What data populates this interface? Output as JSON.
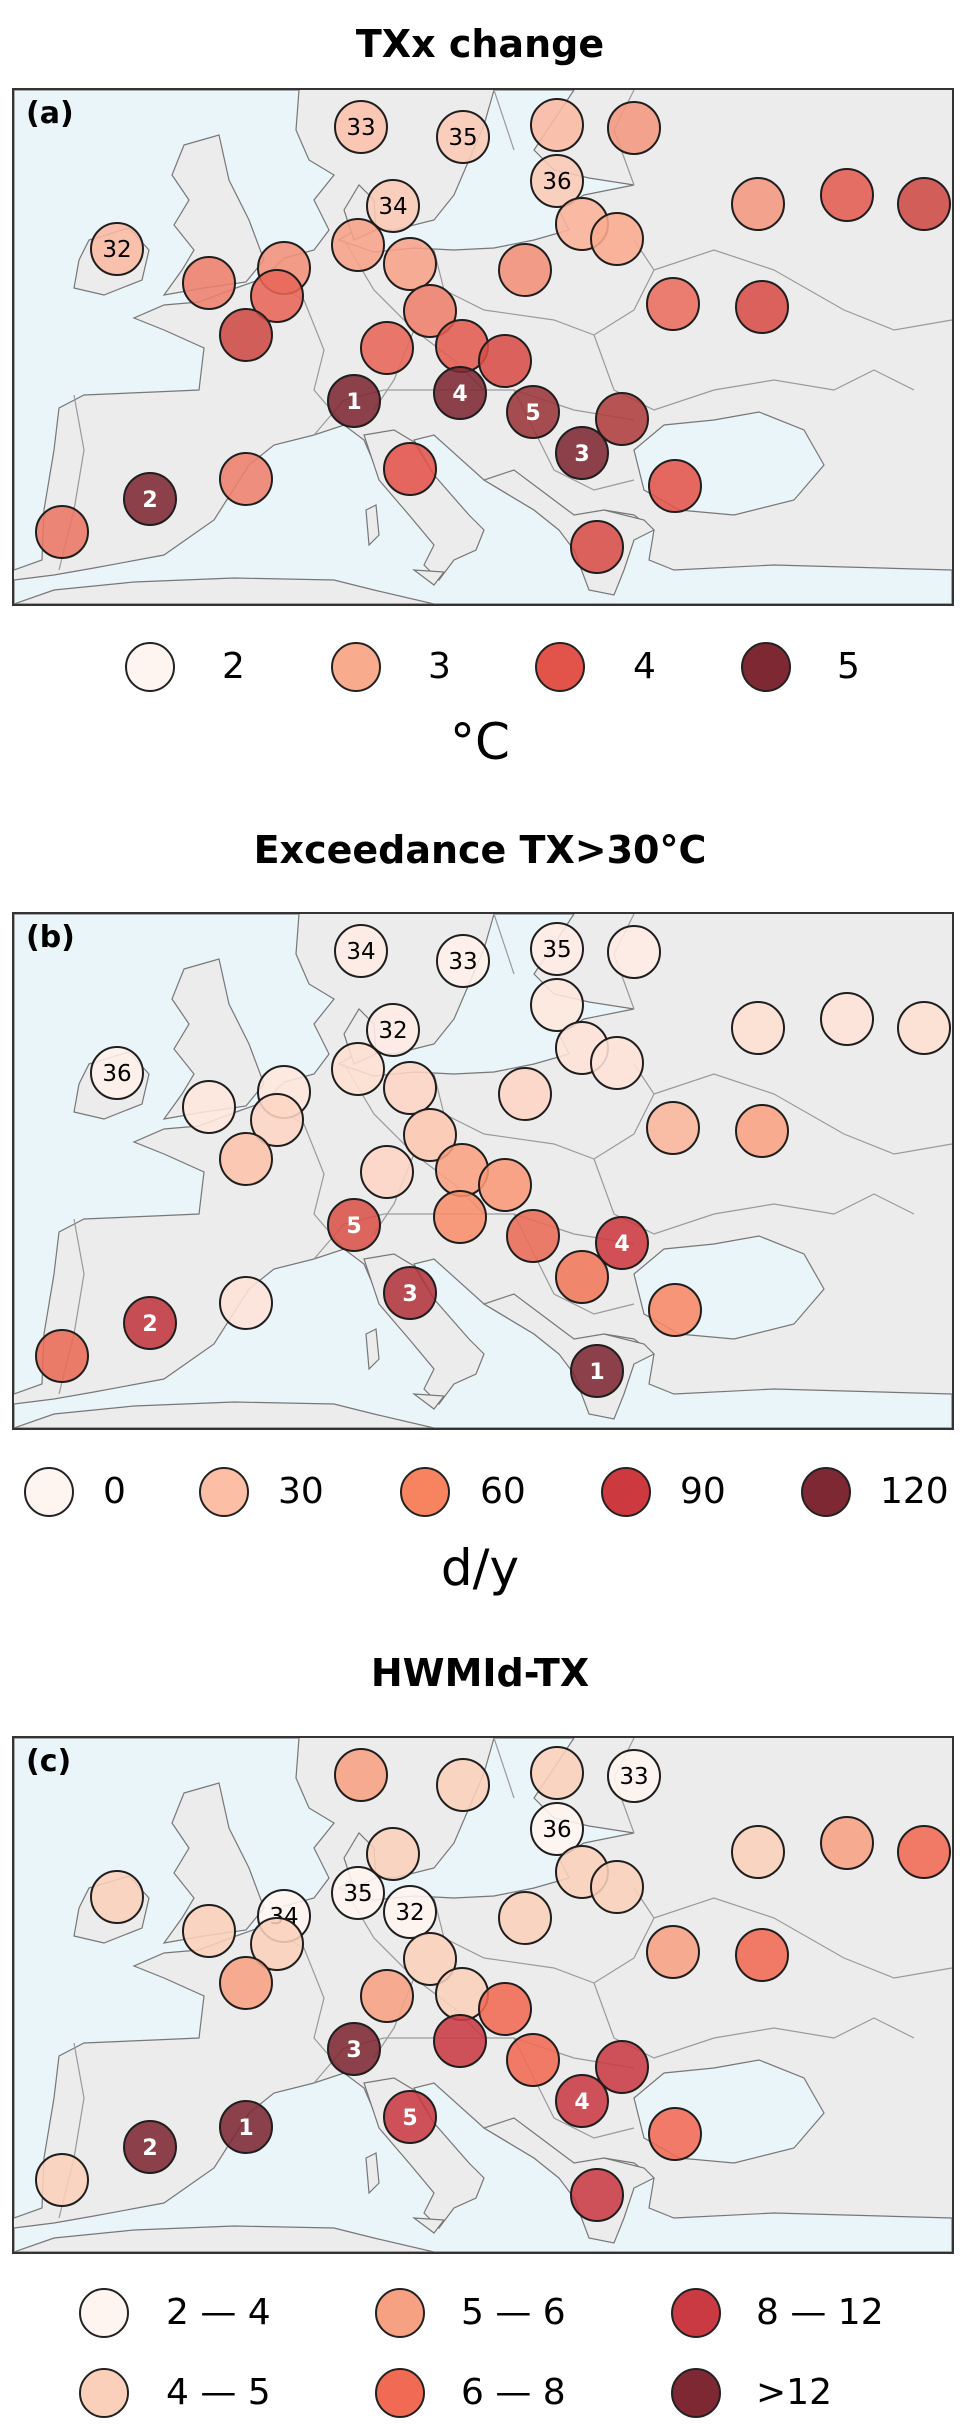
{
  "chart_data": [
    {
      "type": "scatter-map",
      "panel_label": "(a)",
      "title": "TXx change",
      "unit": "°C",
      "legend": [
        {
          "label": "2",
          "value": 2,
          "color": "#fff5f0"
        },
        {
          "label": "3",
          "value": 3,
          "color": "#f9ab8e"
        },
        {
          "label": "4",
          "value": 4,
          "color": "#e2534a"
        },
        {
          "label": "5",
          "value": 5,
          "color": "#7d2833"
        }
      ],
      "stations": [
        {
          "v": 2.7,
          "label": "33"
        },
        {
          "v": 2.6,
          "label": "35"
        },
        {
          "v": 2.8,
          "label": ""
        },
        {
          "v": 3.2,
          "label": ""
        },
        {
          "v": 2.6,
          "label": "36"
        },
        {
          "v": 2.6,
          "label": "34"
        },
        {
          "v": 3.2,
          "label": ""
        },
        {
          "v": 3.9,
          "label": ""
        },
        {
          "v": 4.2,
          "label": ""
        },
        {
          "v": 2.8,
          "label": "32"
        },
        {
          "v": 3.1,
          "label": ""
        },
        {
          "v": 3.1,
          "label": ""
        },
        {
          "v": 2.9,
          "label": ""
        },
        {
          "v": 3.0,
          "label": ""
        },
        {
          "v": 3.3,
          "label": ""
        },
        {
          "v": 3.5,
          "label": ""
        },
        {
          "v": 3.3,
          "label": ""
        },
        {
          "v": 3.8,
          "label": ""
        },
        {
          "v": 4.2,
          "label": ""
        },
        {
          "v": 3.5,
          "label": ""
        },
        {
          "v": 3.7,
          "label": ""
        },
        {
          "v": 4.1,
          "label": ""
        },
        {
          "v": 3.8,
          "label": ""
        },
        {
          "v": 3.9,
          "label": ""
        },
        {
          "v": 4.1,
          "label": ""
        },
        {
          "v": 5.0,
          "label": "1"
        },
        {
          "v": 5.0,
          "label": "4"
        },
        {
          "v": 4.7,
          "label": "5"
        },
        {
          "v": 4.5,
          "label": ""
        },
        {
          "v": 5.0,
          "label": "3"
        },
        {
          "v": 4.0,
          "label": ""
        },
        {
          "v": 3.5,
          "label": ""
        },
        {
          "v": 5.0,
          "label": "2"
        },
        {
          "v": 3.6,
          "label": ""
        },
        {
          "v": 4.0,
          "label": ""
        },
        {
          "v": 4.1,
          "label": ""
        }
      ]
    },
    {
      "type": "scatter-map",
      "panel_label": "(b)",
      "title": "Exceedance TX>30°C",
      "unit": "d/y",
      "legend": [
        {
          "label": "0",
          "value": 0,
          "color": "#fff5f0"
        },
        {
          "label": "30",
          "value": 30,
          "color": "#fcbfa6"
        },
        {
          "label": "60",
          "value": 60,
          "color": "#f7845f"
        },
        {
          "label": "90",
          "value": 90,
          "color": "#cc3a40"
        },
        {
          "label": "120",
          "value": 120,
          "color": "#7d2833"
        }
      ],
      "stations": [
        {
          "v": 5,
          "label": "34"
        },
        {
          "v": 3,
          "label": "33"
        },
        {
          "v": 5,
          "label": "35"
        },
        {
          "v": 5,
          "label": ""
        },
        {
          "v": 8,
          "label": ""
        },
        {
          "v": 5,
          "label": "32"
        },
        {
          "v": 12,
          "label": ""
        },
        {
          "v": 10,
          "label": ""
        },
        {
          "v": 12,
          "label": ""
        },
        {
          "v": 3,
          "label": "36"
        },
        {
          "v": 12,
          "label": ""
        },
        {
          "v": 18,
          "label": ""
        },
        {
          "v": 10,
          "label": ""
        },
        {
          "v": 10,
          "label": ""
        },
        {
          "v": 18,
          "label": ""
        },
        {
          "v": 8,
          "label": ""
        },
        {
          "v": 8,
          "label": ""
        },
        {
          "v": 18,
          "label": ""
        },
        {
          "v": 28,
          "label": ""
        },
        {
          "v": 25,
          "label": ""
        },
        {
          "v": 35,
          "label": ""
        },
        {
          "v": 45,
          "label": ""
        },
        {
          "v": 18,
          "label": ""
        },
        {
          "v": 45,
          "label": ""
        },
        {
          "v": 50,
          "label": ""
        },
        {
          "v": 80,
          "label": "5"
        },
        {
          "v": 55,
          "label": ""
        },
        {
          "v": 70,
          "label": ""
        },
        {
          "v": 90,
          "label": "4"
        },
        {
          "v": 65,
          "label": ""
        },
        {
          "v": 100,
          "label": "3"
        },
        {
          "v": 10,
          "label": ""
        },
        {
          "v": 95,
          "label": "2"
        },
        {
          "v": 70,
          "label": ""
        },
        {
          "v": 58,
          "label": ""
        },
        {
          "v": 120,
          "label": "1"
        }
      ]
    },
    {
      "type": "scatter-map",
      "panel_label": "(c)",
      "title": "HWMId-TX",
      "unit": "",
      "legend": [
        {
          "label": "2 — 4",
          "color": "#fff5f0"
        },
        {
          "label": "4 — 5",
          "color": "#fbd0ba"
        },
        {
          "label": "5 — 6",
          "color": "#f7a183"
        },
        {
          "label": "6 — 8",
          "color": "#f16a53"
        },
        {
          "label": "8 — 12",
          "color": "#c93a43"
        },
        {
          "label": ">12",
          "color": "#7d2833"
        }
      ],
      "stations": [
        {
          "c": 2,
          "label": ""
        },
        {
          "c": 1,
          "label": ""
        },
        {
          "c": 1,
          "label": ""
        },
        {
          "c": 0,
          "label": "33"
        },
        {
          "c": 0,
          "label": "36"
        },
        {
          "c": 1,
          "label": ""
        },
        {
          "c": 1,
          "label": ""
        },
        {
          "c": 2,
          "label": ""
        },
        {
          "c": 3,
          "label": ""
        },
        {
          "c": 1,
          "label": ""
        },
        {
          "c": 0,
          "label": "35"
        },
        {
          "c": 0,
          "label": "32"
        },
        {
          "c": 1,
          "label": ""
        },
        {
          "c": 1,
          "label": ""
        },
        {
          "c": 1,
          "label": ""
        },
        {
          "c": 1,
          "label": ""
        },
        {
          "c": 0,
          "label": "34"
        },
        {
          "c": 1,
          "label": ""
        },
        {
          "c": 2,
          "label": ""
        },
        {
          "c": 1,
          "label": ""
        },
        {
          "c": 2,
          "label": ""
        },
        {
          "c": 3,
          "label": ""
        },
        {
          "c": 2,
          "label": ""
        },
        {
          "c": 1,
          "label": ""
        },
        {
          "c": 3,
          "label": ""
        },
        {
          "c": 5,
          "label": "3"
        },
        {
          "c": 4,
          "label": ""
        },
        {
          "c": 3,
          "label": ""
        },
        {
          "c": 4,
          "label": ""
        },
        {
          "c": 4,
          "label": "4"
        },
        {
          "c": 4,
          "label": "5"
        },
        {
          "c": 5,
          "label": "1"
        },
        {
          "c": 5,
          "label": "2"
        },
        {
          "c": 1,
          "label": ""
        },
        {
          "c": 3,
          "label": ""
        },
        {
          "c": 4,
          "label": ""
        }
      ]
    }
  ],
  "colors": {
    "sea": "#eaf5fa",
    "land": "#ececec",
    "border": "#9a9a9a",
    "coast": "#777777"
  }
}
